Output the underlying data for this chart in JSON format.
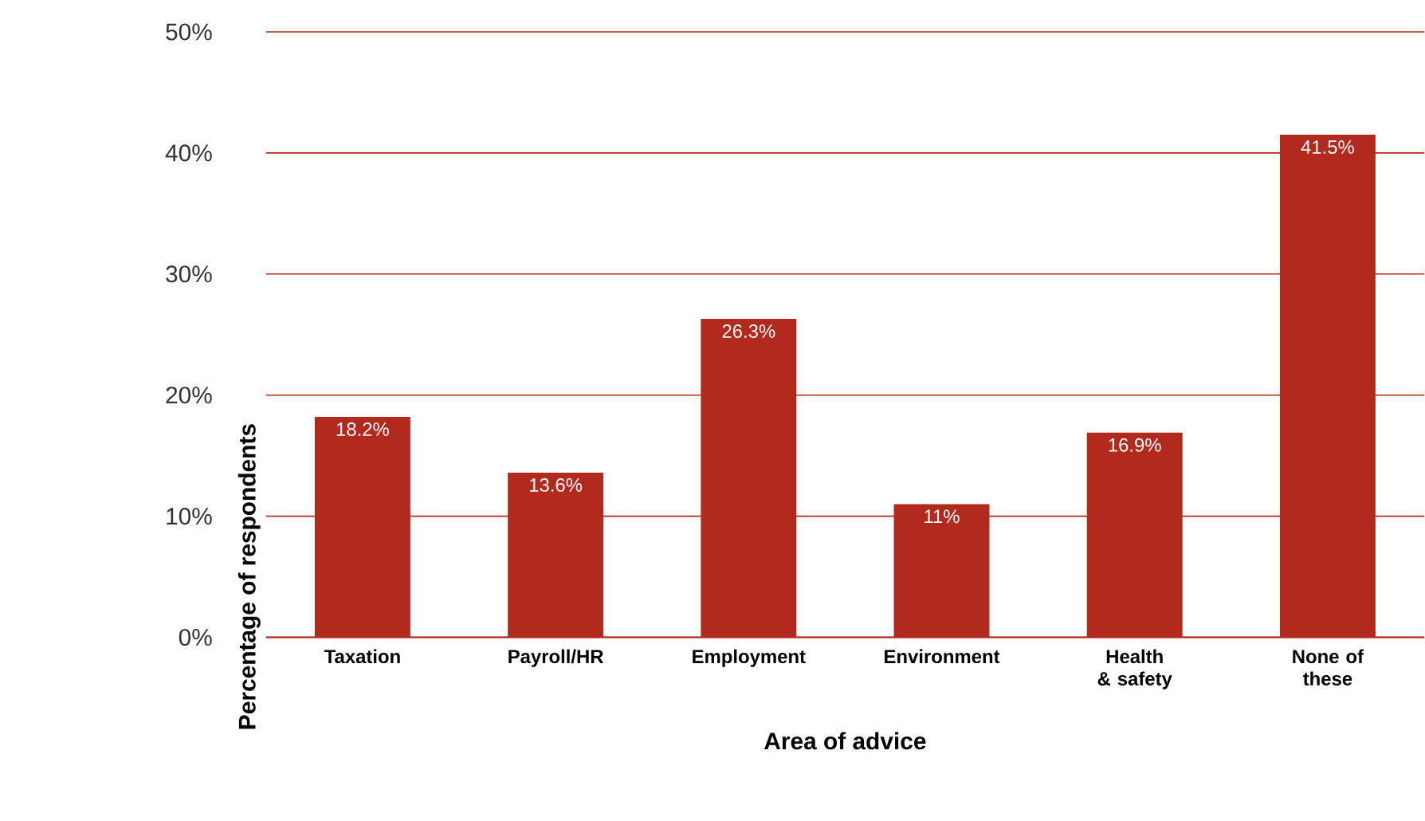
{
  "chart_data": {
    "type": "bar",
    "xlabel": "Area of advice",
    "ylabel": "Percentage of respondents",
    "categories": [
      "Taxation",
      "Payroll/HR",
      "Employment",
      "Environment",
      "Health & safety",
      "None of these"
    ],
    "values": [
      18.2,
      13.6,
      26.3,
      11,
      16.9,
      41.5
    ],
    "value_labels": [
      "18.2%",
      "13.6%",
      "26.3%",
      "11%",
      "16.9%",
      "41.5%"
    ],
    "color": "#b22a1e",
    "ylim": [
      0,
      50
    ],
    "yticks": [
      {
        "value": 0,
        "label": "0%"
      },
      {
        "value": 10,
        "label": "10%"
      },
      {
        "value": 20,
        "label": "20%"
      },
      {
        "value": 30,
        "label": "30%"
      },
      {
        "value": 40,
        "label": "40%"
      },
      {
        "value": 50,
        "label": "50%"
      }
    ],
    "grid": "y"
  }
}
